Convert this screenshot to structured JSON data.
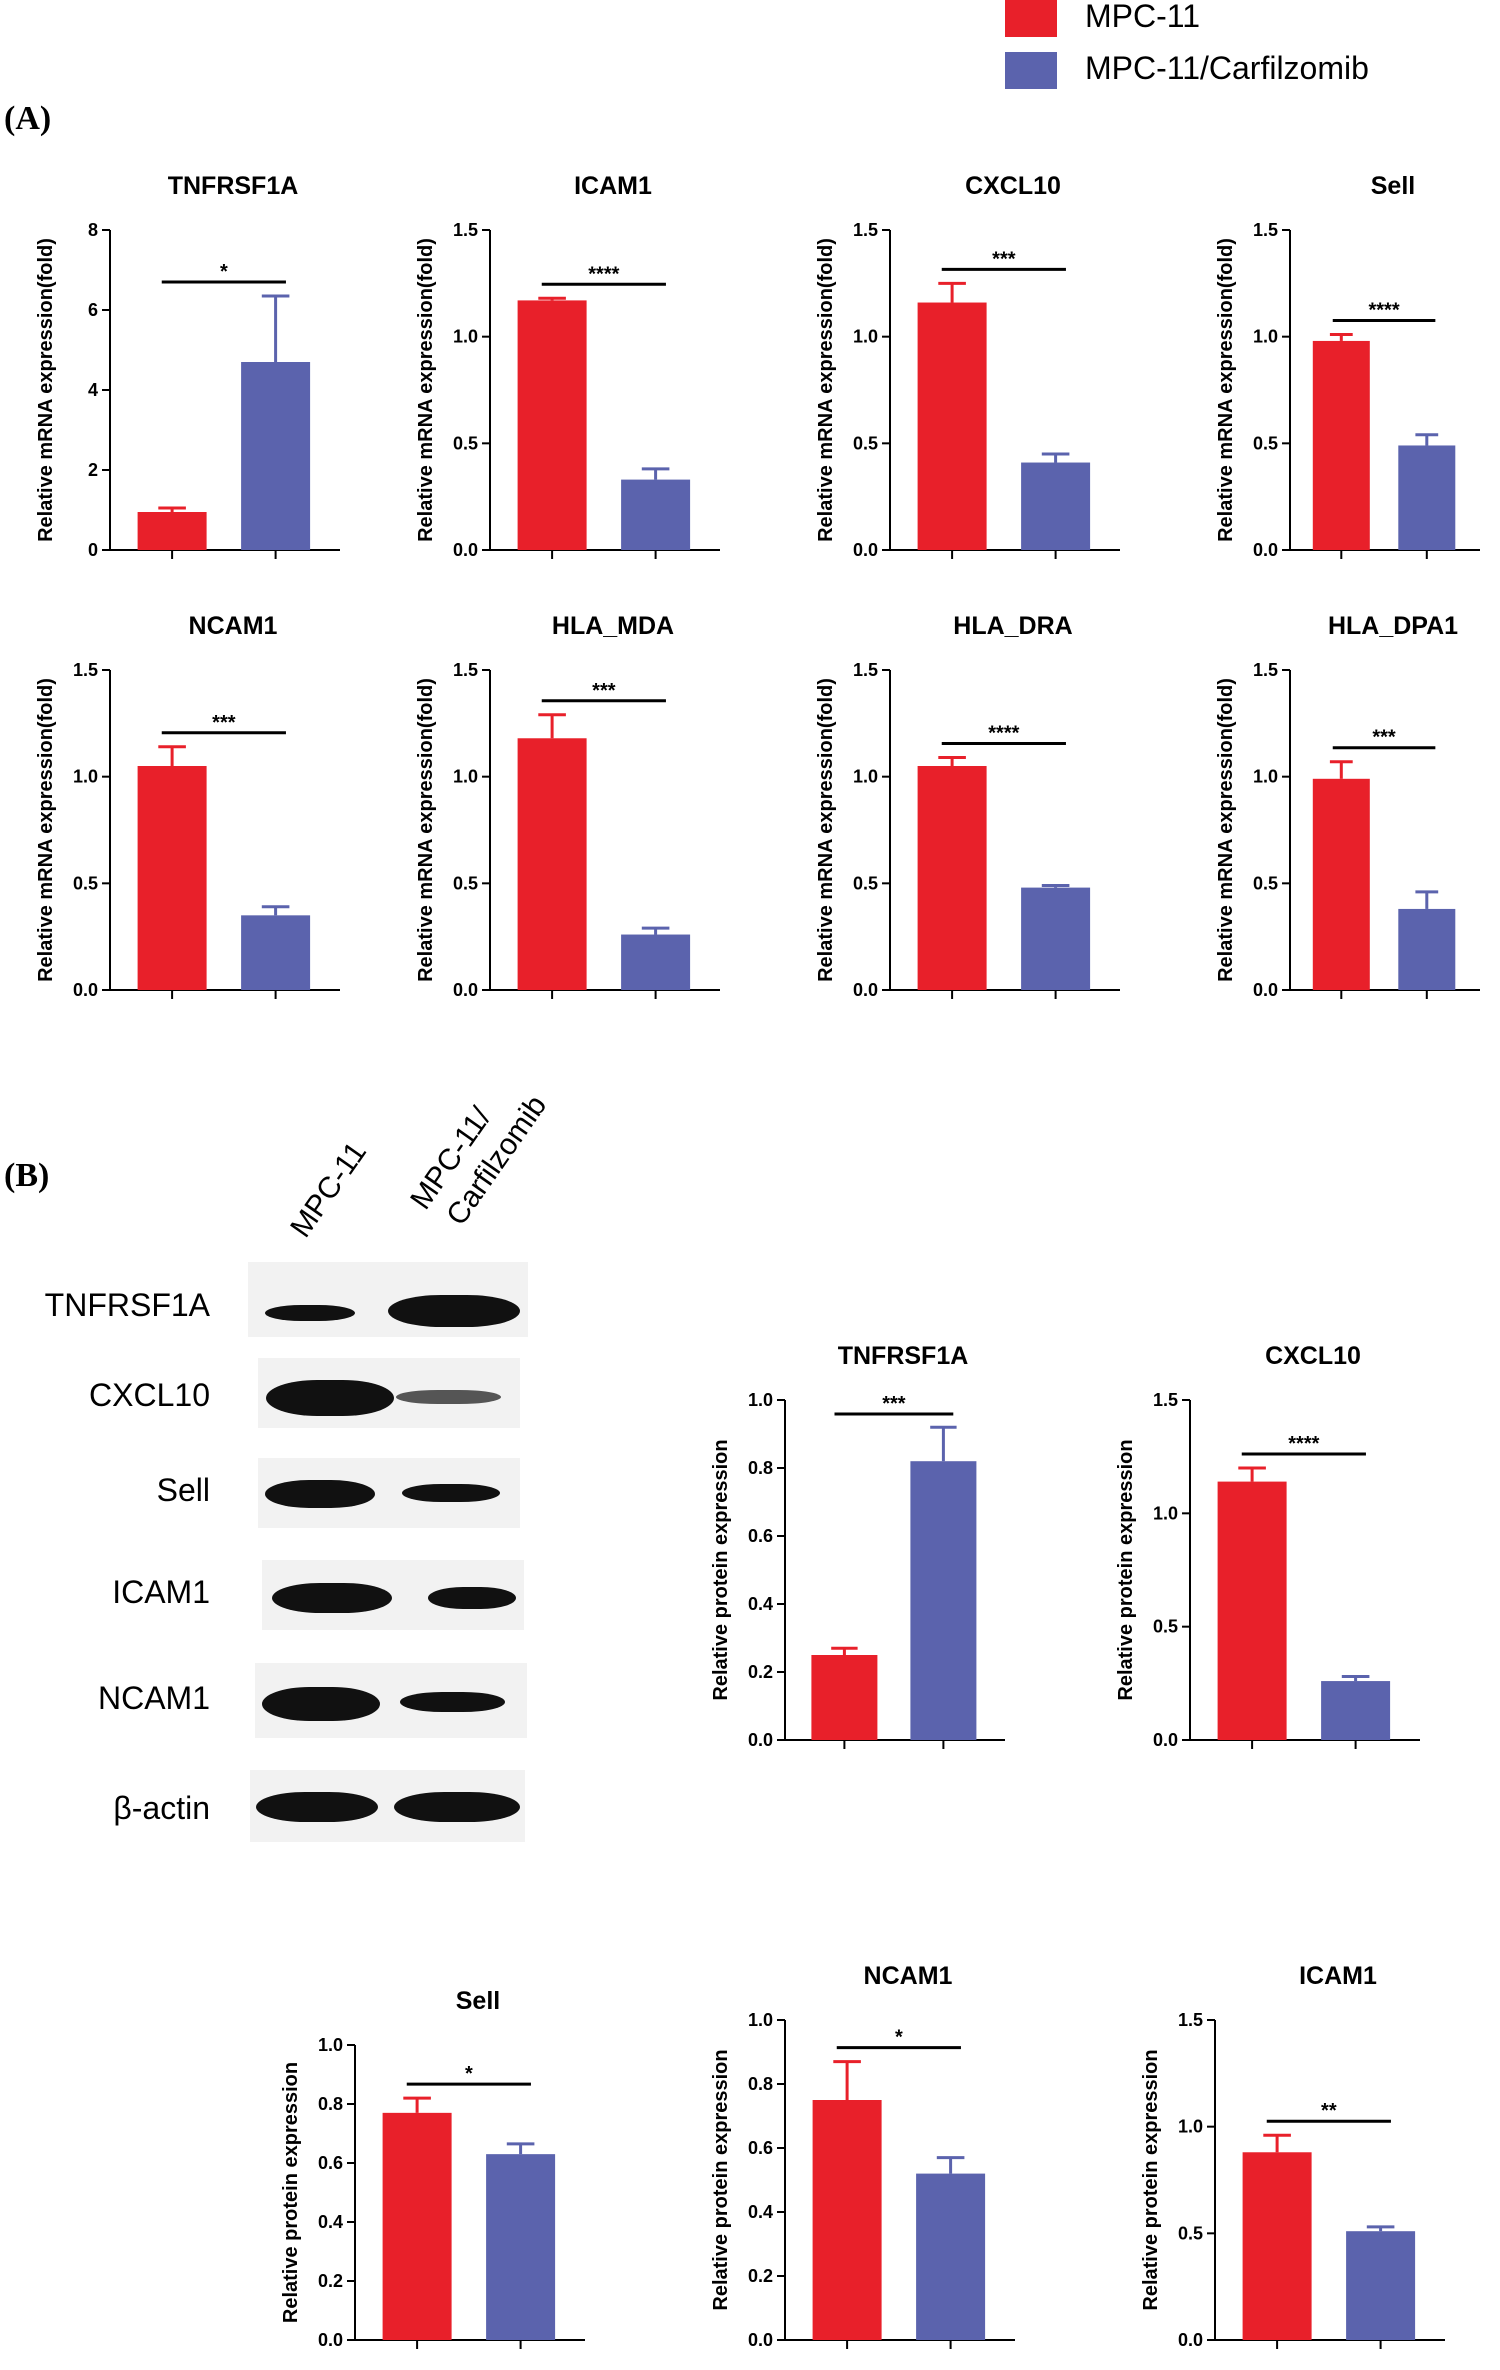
{
  "legend": {
    "items": [
      {
        "label": "MPC-11",
        "color": "#e8202a"
      },
      {
        "label": "MPC-11/Carfilzomib",
        "color": "#5b63ad"
      }
    ]
  },
  "panel_a": {
    "label": "(A)"
  },
  "panel_b": {
    "label": "(B)"
  },
  "western_blot": {
    "lanes": [
      "MPC-11",
      "MPC-11/\nCarfilzomib"
    ],
    "lane1": "MPC-11",
    "lane2_line1": "MPC-11/",
    "lane2_line2": "Carfilzomib",
    "proteins": [
      "TNFRSF1A",
      "CXCL10",
      "Sell",
      "ICAM1",
      "NCAM1",
      "β-actin"
    ]
  },
  "chart_data": [
    {
      "id": "a1",
      "type": "bar",
      "title": "TNFRSF1A",
      "ylabel": "Relative mRNA expression(fold)",
      "categories": [
        "MPC-11",
        "MPC-11/Carfilzomib"
      ],
      "values": [
        0.95,
        4.7
      ],
      "errors": [
        0.1,
        1.65
      ],
      "ylim": [
        0,
        8
      ],
      "yticks": [
        "0",
        "2",
        "4",
        "6",
        "8"
      ],
      "sig": "*"
    },
    {
      "id": "a2",
      "type": "bar",
      "title": "ICAM1",
      "ylabel": "Relative mRNA expression(fold)",
      "categories": [
        "MPC-11",
        "MPC-11/Carfilzomib"
      ],
      "values": [
        1.17,
        0.33
      ],
      "errors": [
        0.01,
        0.05
      ],
      "ylim": [
        0,
        1.5
      ],
      "yticks": [
        "0.0",
        "0.5",
        "1.0",
        "1.5"
      ],
      "sig": "****"
    },
    {
      "id": "a3",
      "type": "bar",
      "title": "CXCL10",
      "ylabel": "Relative mRNA expression(fold)",
      "categories": [
        "MPC-11",
        "MPC-11/Carfilzomib"
      ],
      "values": [
        1.16,
        0.41
      ],
      "errors": [
        0.09,
        0.04
      ],
      "ylim": [
        0,
        1.5
      ],
      "yticks": [
        "0.0",
        "0.5",
        "1.0",
        "1.5"
      ],
      "sig": "***"
    },
    {
      "id": "a4",
      "type": "bar",
      "title": "Sell",
      "ylabel": "Relative mRNA expression(fold)",
      "categories": [
        "MPC-11",
        "MPC-11/Carfilzomib"
      ],
      "values": [
        0.98,
        0.49
      ],
      "errors": [
        0.03,
        0.05
      ],
      "ylim": [
        0,
        1.5
      ],
      "yticks": [
        "0.0",
        "0.5",
        "1.0",
        "1.5"
      ],
      "sig": "****"
    },
    {
      "id": "a5",
      "type": "bar",
      "title": "NCAM1",
      "ylabel": "Relative mRNA expression(fold)",
      "categories": [
        "MPC-11",
        "MPC-11/Carfilzomib"
      ],
      "values": [
        1.05,
        0.35
      ],
      "errors": [
        0.09,
        0.04
      ],
      "ylim": [
        0,
        1.5
      ],
      "yticks": [
        "0.0",
        "0.5",
        "1.0",
        "1.5"
      ],
      "sig": "***"
    },
    {
      "id": "a6",
      "type": "bar",
      "title": "HLA_MDA",
      "ylabel": "Relative mRNA expression(fold)",
      "categories": [
        "MPC-11",
        "MPC-11/Carfilzomib"
      ],
      "values": [
        1.18,
        0.26
      ],
      "errors": [
        0.11,
        0.03
      ],
      "ylim": [
        0,
        1.5
      ],
      "yticks": [
        "0.0",
        "0.5",
        "1.0",
        "1.5"
      ],
      "sig": "***"
    },
    {
      "id": "a7",
      "type": "bar",
      "title": "HLA_DRA",
      "ylabel": "Relative mRNA expression(fold)",
      "categories": [
        "MPC-11",
        "MPC-11/Carfilzomib"
      ],
      "values": [
        1.05,
        0.48
      ],
      "errors": [
        0.04,
        0.01
      ],
      "ylim": [
        0,
        1.5
      ],
      "yticks": [
        "0.0",
        "0.5",
        "1.0",
        "1.5"
      ],
      "sig": "****"
    },
    {
      "id": "a8",
      "type": "bar",
      "title": "HLA_DPA1",
      "ylabel": "Relative mRNA expression(fold)",
      "categories": [
        "MPC-11",
        "MPC-11/Carfilzomib"
      ],
      "values": [
        0.99,
        0.38
      ],
      "errors": [
        0.08,
        0.08
      ],
      "ylim": [
        0,
        1.5
      ],
      "yticks": [
        "0.0",
        "0.5",
        "1.0",
        "1.5"
      ],
      "sig": "***"
    },
    {
      "id": "b1",
      "type": "bar",
      "title": "TNFRSF1A",
      "ylabel": "Relative protein expression",
      "categories": [
        "MPC-11",
        "MPC-11/Carfilzomib"
      ],
      "values": [
        0.25,
        0.82
      ],
      "errors": [
        0.02,
        0.1
      ],
      "ylim": [
        0,
        1.0
      ],
      "yticks": [
        "0.0",
        "0.2",
        "0.4",
        "0.6",
        "0.8",
        "1.0"
      ],
      "sig": "***"
    },
    {
      "id": "b2",
      "type": "bar",
      "title": "CXCL10",
      "ylabel": "Relative protein expression",
      "categories": [
        "MPC-11",
        "MPC-11/Carfilzomib"
      ],
      "values": [
        1.14,
        0.26
      ],
      "errors": [
        0.06,
        0.02
      ],
      "ylim": [
        0,
        1.5
      ],
      "yticks": [
        "0.0",
        "0.5",
        "1.0",
        "1.5"
      ],
      "sig": "****"
    },
    {
      "id": "b3",
      "type": "bar",
      "title": "Sell",
      "ylabel": "Relative protein expression",
      "categories": [
        "MPC-11",
        "MPC-11/Carfilzomib"
      ],
      "values": [
        0.77,
        0.63
      ],
      "errors": [
        0.05,
        0.035
      ],
      "ylim": [
        0,
        1.0
      ],
      "yticks": [
        "0.0",
        "0.2",
        "0.4",
        "0.6",
        "0.8",
        "1.0"
      ],
      "sig": "*"
    },
    {
      "id": "b4",
      "type": "bar",
      "title": "NCAM1",
      "ylabel": "Relative protein expression",
      "categories": [
        "MPC-11",
        "MPC-11/Carfilzomib"
      ],
      "values": [
        0.75,
        0.52
      ],
      "errors": [
        0.12,
        0.05
      ],
      "ylim": [
        0,
        1.0
      ],
      "yticks": [
        "0.0",
        "0.2",
        "0.4",
        "0.6",
        "0.8",
        "1.0"
      ],
      "sig": "*"
    },
    {
      "id": "b5",
      "type": "bar",
      "title": "ICAM1",
      "ylabel": "Relative protein expression",
      "categories": [
        "MPC-11",
        "MPC-11/Carfilzomib"
      ],
      "values": [
        0.88,
        0.51
      ],
      "errors": [
        0.08,
        0.02
      ],
      "ylim": [
        0,
        1.5
      ],
      "yticks": [
        "0.0",
        "0.5",
        "1.0",
        "1.5"
      ],
      "sig": "**"
    }
  ]
}
